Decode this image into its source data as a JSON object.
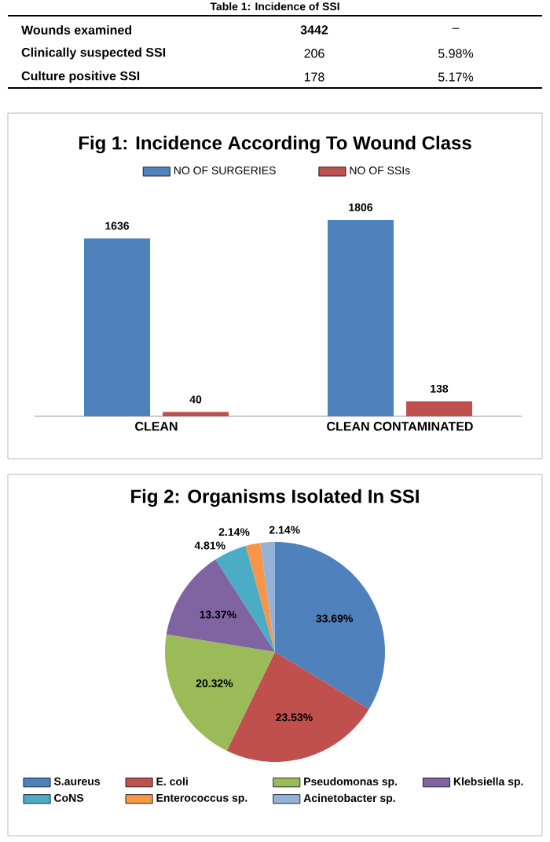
{
  "chart_data": [
    {
      "type": "other",
      "title": "Table 1: Incidence of SSI",
      "annotations": [
        "Wounds examined",
        "3442",
        "–",
        "Clinically suspected SSI",
        "206",
        "5.98%",
        "Culture positive SSI",
        "178",
        "5.17%"
      ]
    },
    {
      "type": "bar",
      "title": "Fig 1: Incidence According To Wound Class",
      "categories": [
        "CLEAN",
        "CLEAN CONTAMINATED"
      ],
      "series": [
        {
          "name": "NO OF SURGERIES",
          "color": "#4f81bd",
          "values": [
            1636,
            1806
          ],
          "value_labels": [
            "1636",
            "1806"
          ]
        },
        {
          "name": "NO OF SSIs",
          "color": "#c0504d",
          "values": [
            40,
            138
          ],
          "value_labels": [
            "40",
            "138"
          ]
        }
      ],
      "legend": "top",
      "tick_labels": "x"
    },
    {
      "type": "pie",
      "title": "Fig 2: Organisms Isolated In SSI",
      "categories": [
        "S.aureus",
        "E. coli",
        "Pseudomonas sp.",
        "Klebsiella sp.",
        "CoNS",
        "Enterococcus sp.",
        "Acinetobacter sp."
      ],
      "values": [
        33.69,
        23.53,
        20.32,
        13.37,
        4.81,
        2.14,
        2.14
      ],
      "colors": [
        "#4f81bd",
        "#c0504d",
        "#9bbb59",
        "#8064a2",
        "#4bacc6",
        "#f79646",
        "#95b3d7"
      ],
      "value_labels": [
        "33.69%",
        "23.53%",
        "20.32%",
        "13.37%",
        "4.81%",
        "2.14%",
        "2.14%"
      ],
      "legend": "bottom"
    }
  ]
}
